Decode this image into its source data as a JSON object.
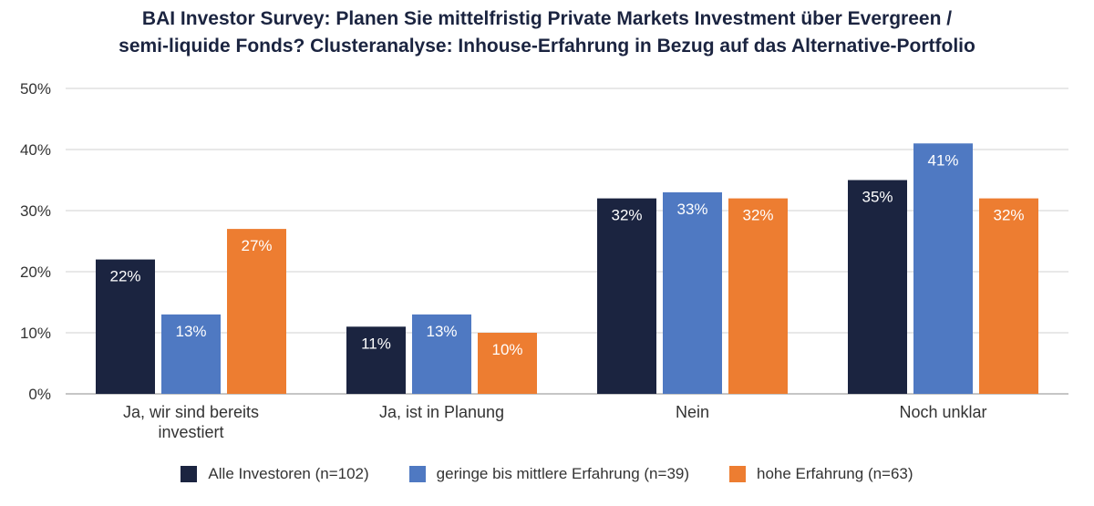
{
  "chart_data": {
    "type": "bar",
    "title_line1": "BAI Investor Survey: Planen Sie mittelfristig Private Markets Investment über Evergreen /",
    "title_line2": "semi-liquide Fonds? Clusteranalyse: Inhouse-Erfahrung in Bezug auf das Alternative-Portfolio",
    "categories": [
      [
        "Ja, wir sind bereits",
        "investiert"
      ],
      [
        "Ja, ist in Planung"
      ],
      [
        "Nein"
      ],
      [
        "Noch unklar"
      ]
    ],
    "series": [
      {
        "name": "Alle Investoren (n=102)",
        "color": "#1b2440",
        "values": [
          22,
          11,
          32,
          35
        ]
      },
      {
        "name": "geringe bis mittlere Erfahrung (n=39)",
        "color": "#4f79c2",
        "values": [
          13,
          13,
          33,
          41
        ]
      },
      {
        "name": "hohe Erfahrung (n=63)",
        "color": "#ed7d31",
        "values": [
          27,
          10,
          32,
          32
        ]
      }
    ],
    "ylim": [
      0,
      50
    ],
    "yticks": [
      0,
      10,
      20,
      30,
      40,
      50
    ],
    "value_suffix": "%",
    "grid": true,
    "legend_position": "bottom"
  }
}
